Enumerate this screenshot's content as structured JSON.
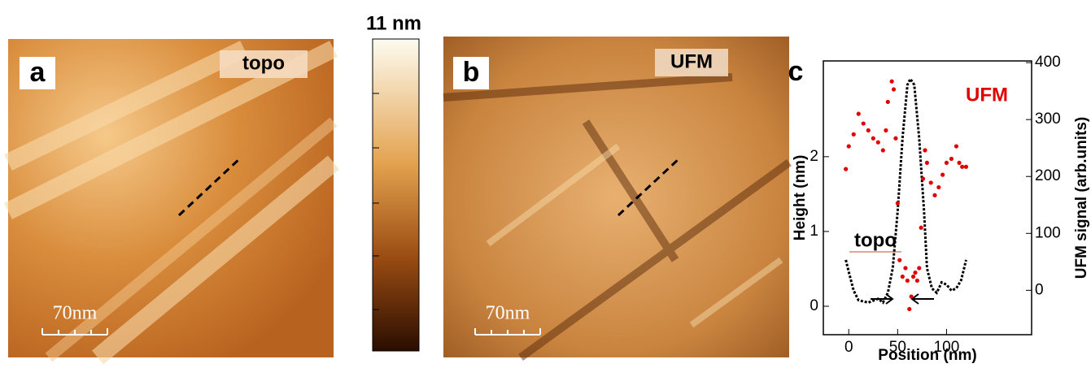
{
  "panels": {
    "a": {
      "label": "a",
      "tag": "topo",
      "scale_bar": "70nm"
    },
    "colorbar": {
      "label": "11 nm"
    },
    "b": {
      "label": "b",
      "tag": "UFM",
      "scale_bar": "70nm"
    },
    "c": {
      "label": "c"
    }
  },
  "chart_data": {
    "type": "line",
    "x_label": "Position (nm)",
    "y_label": "Height (nm)",
    "y2_label": "UFM signal (arb.units)",
    "annotations": [
      "topo",
      "UFM"
    ],
    "xlim": [
      -26,
      187
    ],
    "xticks": [
      0,
      50,
      100
    ],
    "ylim": [
      -0.38,
      3.28
    ],
    "yticks": [
      0,
      1,
      2
    ],
    "y2lim": [
      -78,
      403
    ],
    "y2ticks": [
      0,
      100,
      200,
      300,
      400
    ],
    "series": [
      {
        "name": "topo",
        "color": "#000000",
        "x": [
          -3,
          0,
          5,
          10,
          20,
          30,
          35,
          40,
          45,
          50,
          55,
          60,
          63,
          67,
          72,
          77,
          80,
          85,
          90,
          95,
          100,
          105,
          110,
          115,
          120
        ],
        "values": [
          0.62,
          0.46,
          0.21,
          0.08,
          0.05,
          0.1,
          0.05,
          0.18,
          0.51,
          1.27,
          2.25,
          2.96,
          3.04,
          2.96,
          2.25,
          1.27,
          0.51,
          0.24,
          0.18,
          0.32,
          0.29,
          0.21,
          0.24,
          0.35,
          0.62
        ]
      },
      {
        "name": "UFM",
        "color": "#e00000",
        "axis": "y2",
        "x": [
          -3,
          0,
          5,
          10,
          15,
          20,
          25,
          30,
          35,
          38,
          40,
          44,
          46,
          48,
          50,
          52,
          55,
          58,
          60,
          62,
          64,
          66,
          68,
          70,
          72,
          74,
          76,
          78,
          80,
          84,
          88,
          92,
          96,
          100,
          105,
          110,
          113,
          116,
          120
        ],
        "values": [
          213,
          253,
          274,
          310,
          293,
          281,
          267,
          260,
          246,
          281,
          331,
          367,
          353,
          267,
          153,
          53,
          24,
          39,
          17,
          -33,
          -11,
          24,
          31,
          17,
          39,
          110,
          196,
          246,
          224,
          189,
          167,
          181,
          203,
          224,
          231,
          253,
          224,
          217,
          217
        ]
      }
    ]
  }
}
